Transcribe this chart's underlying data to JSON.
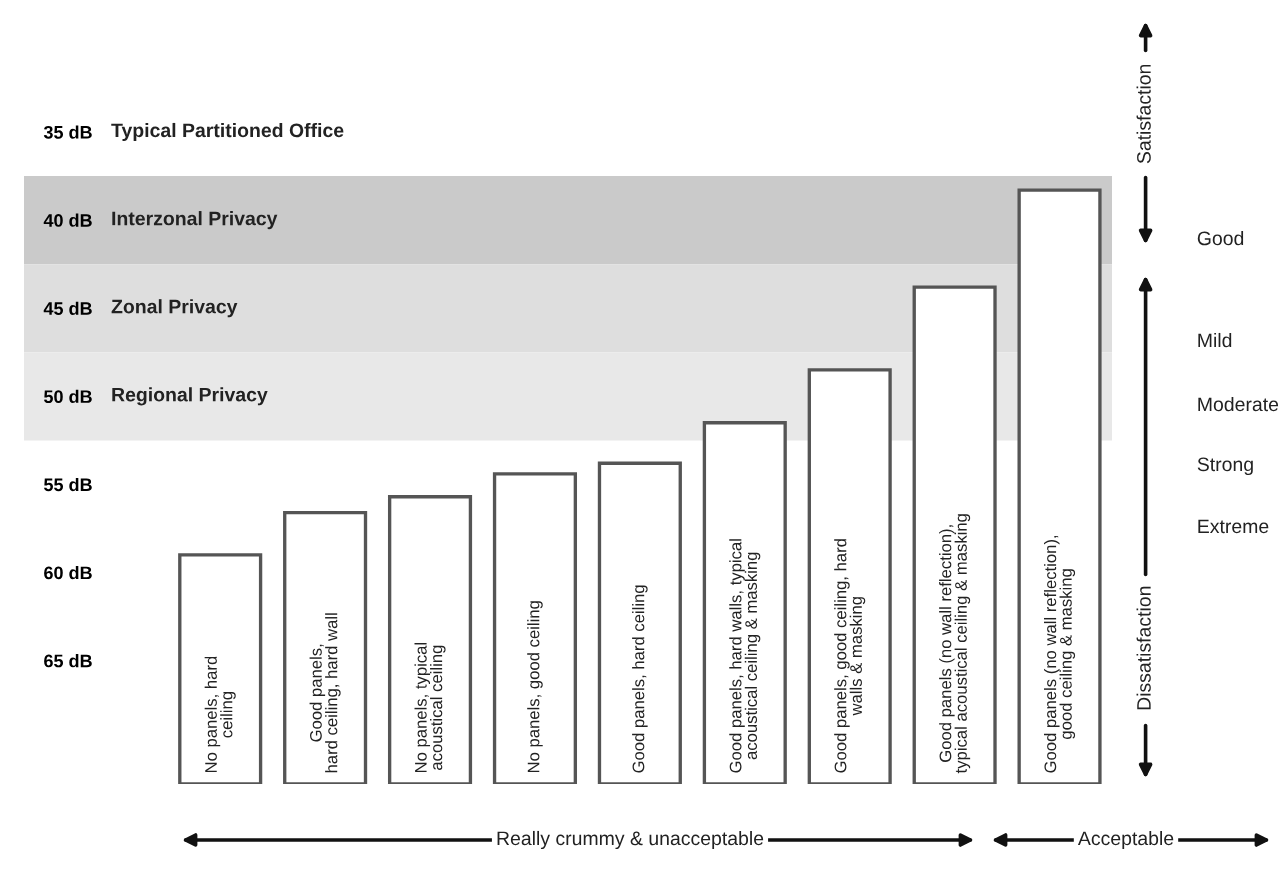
{
  "chart_data": {
    "type": "bar",
    "categories": [
      "No panels, hard\nceiling",
      "Good panels,\nhard ceiling, hard wall",
      "No panels, typical\nacoustical ceiling",
      "No panels, good ceiling",
      "Good panels, hard ceiling",
      "Good panels, hard walls, typical\nacoustical ceiling & masking",
      "Good panels, good ceiling, hard\nwalls & masking",
      "Good panels (no wall reflection),\ntypical acoustical ceiling & masking",
      "Good panels (no wall reflection),\ngood ceiling & masking"
    ],
    "base": [
      72,
      72,
      72,
      72,
      72,
      72,
      72,
      72,
      72
    ],
    "values": [
      -13,
      -15.4,
      -16.3,
      -17.6,
      -18.2,
      -20.5,
      -23.5,
      -28.2,
      -33.7
    ],
    "color": "#ffffff",
    "ylim": [
      72,
      35
    ],
    "yticks": [
      {
        "value": 35,
        "label": "35 dB"
      },
      {
        "value": 40,
        "label": "40 dB"
      },
      {
        "value": 45,
        "label": "45 dB"
      },
      {
        "value": 50,
        "label": "50 dB"
      },
      {
        "value": 55,
        "label": "55 dB"
      },
      {
        "value": 60,
        "label": "60 dB"
      },
      {
        "value": 65,
        "label": "65 dB"
      }
    ],
    "tick_labels": "y",
    "grid": false,
    "legend": false,
    "bands": [
      {
        "axis": "y",
        "from": 37.5,
        "to": 42.5,
        "label": "Interzonal Privacy",
        "color": "#cacaca"
      },
      {
        "axis": "y",
        "from": 42.5,
        "to": 47.5,
        "label": "Zonal Privacy",
        "color": "#dedede"
      },
      {
        "axis": "y",
        "from": 47.5,
        "to": 52.5,
        "label": "Regional Privacy",
        "color": "#e8e8e8"
      }
    ],
    "annotations": [
      "Typical Partitioned Office",
      "Satisfaction",
      "Dissatisfaction",
      "Good",
      "Mild",
      "Moderate",
      "Strong",
      "Extreme",
      "Really crummy & unacceptable",
      "Acceptable"
    ]
  }
}
